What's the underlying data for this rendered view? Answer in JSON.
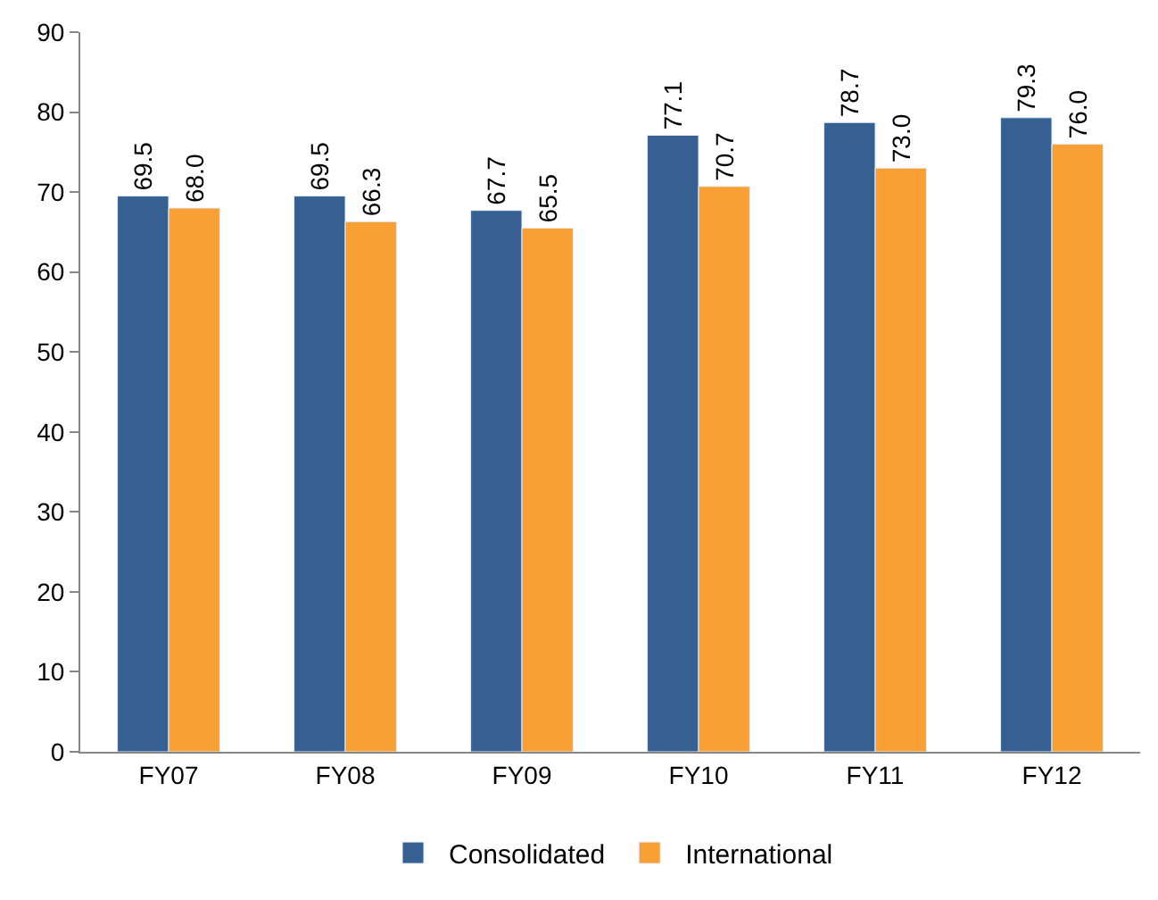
{
  "chart_data": {
    "type": "bar",
    "categories": [
      "FY07",
      "FY08",
      "FY09",
      "FY10",
      "FY11",
      "FY12"
    ],
    "series": [
      {
        "name": "Consolidated",
        "color": "#366092",
        "values": [
          69.5,
          69.5,
          67.7,
          77.1,
          78.7,
          79.3
        ],
        "value_labels": [
          "69.5",
          "69.5",
          "67.7",
          "77.1",
          "78.7",
          "79.3"
        ]
      },
      {
        "name": "International",
        "color": "#f9a034",
        "values": [
          68.0,
          66.3,
          65.5,
          70.7,
          73.0,
          76.0
        ],
        "value_labels": [
          "68.0",
          "66.3",
          "65.5",
          "70.7",
          "73.0",
          "76.0"
        ]
      }
    ],
    "ylim": [
      0,
      90
    ],
    "yticks": [
      0,
      10,
      20,
      30,
      40,
      50,
      60,
      70,
      80,
      90
    ],
    "legend": "bottom"
  }
}
